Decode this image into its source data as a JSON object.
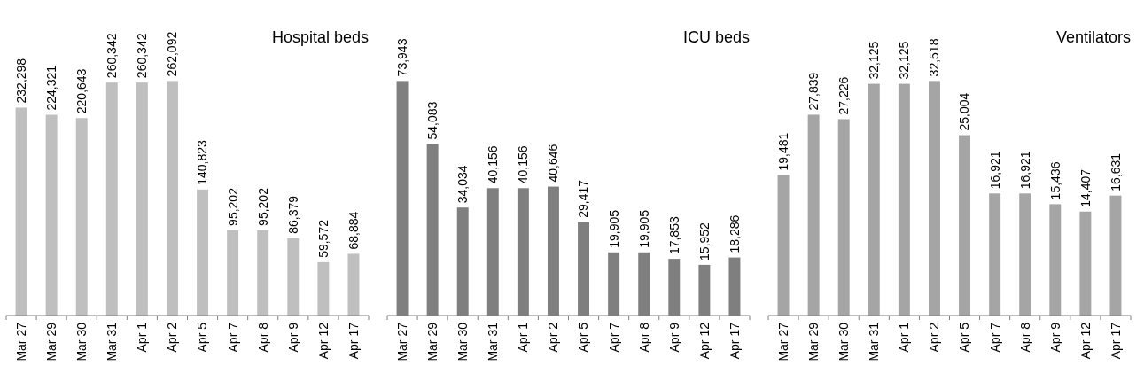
{
  "chart_data": [
    {
      "type": "bar",
      "title": "Hospital beds",
      "categories": [
        "Mar 27",
        "Mar 29",
        "Mar 30",
        "Mar 31",
        "Apr 1",
        "Apr 2",
        "Apr 5",
        "Apr 7",
        "Apr 8",
        "Apr 9",
        "Apr 12",
        "Apr 17"
      ],
      "values": [
        232298,
        224321,
        220643,
        260342,
        260342,
        262092,
        140823,
        95202,
        95202,
        86379,
        59572,
        68884
      ],
      "value_labels": [
        "232,298",
        "224,321",
        "220,643",
        "260,342",
        "260,342",
        "262,092",
        "140,823",
        "95,202",
        "95,202",
        "86,379",
        "59,572",
        "68,884"
      ],
      "color": "#bfbfbf",
      "tick_labels": "x"
    },
    {
      "type": "bar",
      "title": "ICU beds",
      "categories": [
        "Mar 27",
        "Mar 29",
        "Mar 30",
        "Mar 31",
        "Apr 1",
        "Apr 2",
        "Apr 5",
        "Apr 7",
        "Apr 8",
        "Apr 9",
        "Apr 12",
        "Apr 17"
      ],
      "values": [
        73943,
        54083,
        34034,
        40156,
        40156,
        40646,
        29417,
        19905,
        19905,
        17853,
        15952,
        18286
      ],
      "value_labels": [
        "73,943",
        "54,083",
        "34,034",
        "40,156",
        "40,156",
        "40,646",
        "29,417",
        "19,905",
        "19,905",
        "17,853",
        "15,952",
        "18,286"
      ],
      "color": "#7f7f7f",
      "tick_labels": "x"
    },
    {
      "type": "bar",
      "title": "Ventilators",
      "categories": [
        "Mar 27",
        "Mar 29",
        "Mar 30",
        "Mar 31",
        "Apr 1",
        "Apr 2",
        "Apr 5",
        "Apr 7",
        "Apr 8",
        "Apr 9",
        "Apr 12",
        "Apr 17"
      ],
      "values": [
        19481,
        27839,
        27226,
        32125,
        32125,
        32518,
        25004,
        16921,
        16921,
        15436,
        14407,
        16631
      ],
      "value_labels": [
        "19,481",
        "27,839",
        "27,226",
        "32,125",
        "32,125",
        "32,518",
        "25,004",
        "16,921",
        "16,921",
        "15,436",
        "14,407",
        "16,631"
      ],
      "color": "#a5a5a5",
      "tick_labels": "x"
    }
  ]
}
